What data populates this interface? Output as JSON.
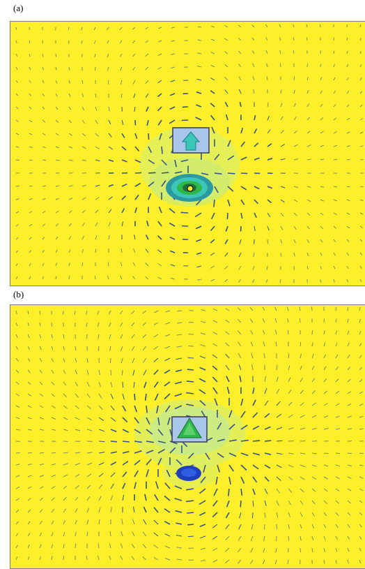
{
  "figure": {
    "panel_a": {
      "label": "(a)"
    },
    "panel_b": {
      "label": "(b)"
    }
  },
  "colors": {
    "background": "#fdf02a",
    "arrow": "#2d4a8a",
    "halo": "#d8ef6a",
    "cyan": "#3cc6b8",
    "green": "#2fb84a",
    "blue": "#1f3fbf",
    "box_fill": "#a9c6e8",
    "box_edge": "#3a3a5a"
  },
  "icons": [
    "vector-field-arrow-icon",
    "diamond-particle-icon",
    "circular-sediment-icon"
  ]
}
